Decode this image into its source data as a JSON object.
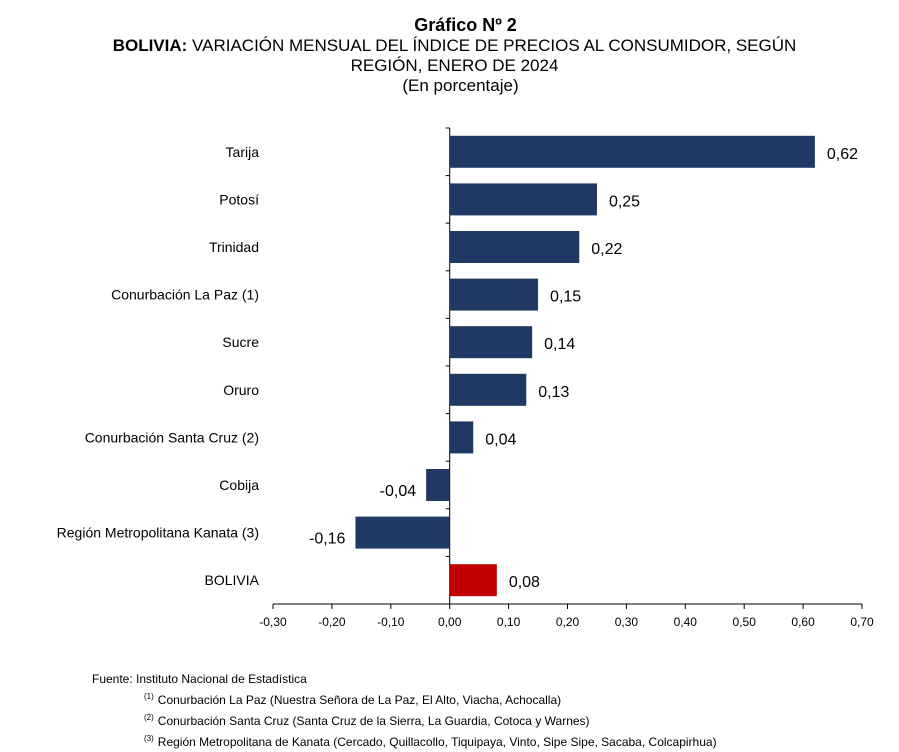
{
  "header": {
    "number": "Gráfico Nº 2",
    "country": "BOLIVIA:",
    "title_line1": "VARIACIÓN MENSUAL DEL ÍNDICE DE PRECIOS AL CONSUMIDOR, SEGÚN",
    "title_line2": "REGIÓN, ENERO DE 2024",
    "unit": "(En porcentaje)"
  },
  "colors": {
    "bar": "#1F3864",
    "highlight": "#C00000",
    "axis": "#000000"
  },
  "chart_data": {
    "type": "bar",
    "orientation": "horizontal",
    "title": "BOLIVIA: VARIACIÓN MENSUAL DEL ÍNDICE DE PRECIOS AL CONSUMIDOR, SEGÚN REGIÓN, ENERO DE 2024",
    "categories": [
      "Tarija",
      "Potosí",
      "Trinidad",
      "Conurbación La Paz (1)",
      "Sucre",
      "Oruro",
      "Conurbación Santa Cruz (2)",
      "Cobija",
      "Región Metropolitana Kanata (3)",
      "BOLIVIA"
    ],
    "values": [
      0.62,
      0.25,
      0.22,
      0.15,
      0.14,
      0.13,
      0.04,
      -0.04,
      -0.16,
      0.08
    ],
    "value_labels": [
      "0,62",
      "0,25",
      "0,22",
      "0,15",
      "0,14",
      "0,13",
      "0,04",
      "-0,04",
      "-0,16",
      "0,08"
    ],
    "highlighted_category": "BOLIVIA",
    "xlim": [
      -0.3,
      0.7
    ],
    "xticks": [
      -0.3,
      -0.2,
      -0.1,
      0.0,
      0.1,
      0.2,
      0.3,
      0.4,
      0.5,
      0.6,
      0.7
    ],
    "xtick_labels": [
      "-0,30",
      "-0,20",
      "-0,10",
      "0,00",
      "0,10",
      "0,20",
      "0,30",
      "0,40",
      "0,50",
      "0,60",
      "0,70"
    ],
    "xlabel": "",
    "ylabel": "",
    "grid": false,
    "legend": "none"
  },
  "footer": {
    "source": "Fuente: Instituto Nacional de Estadística",
    "notes": [
      {
        "mark": "(1)",
        "text": "Conurbación La Paz (Nuestra Señora de La Paz, El Alto, Viacha, Achocalla)"
      },
      {
        "mark": "(2)",
        "text": "Conurbación Santa Cruz (Santa Cruz de la Sierra, La Guardia, Cotoca y Warnes)"
      },
      {
        "mark": "(3)",
        "text": "Región Metropolitana de Kanata (Cercado, Quillacollo, Tiquipaya, Vinto, Sipe Sipe, Sacaba, Colcapirhua)"
      }
    ]
  }
}
